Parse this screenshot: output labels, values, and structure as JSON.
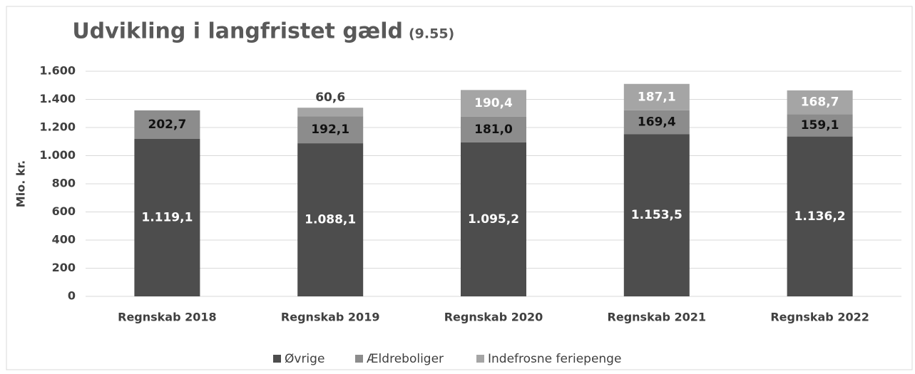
{
  "chart_data": {
    "type": "stacked_bar",
    "title": "Udvikling i langfristet gæld",
    "subtitle": "(9.55)",
    "y_label": "Mio. kr.",
    "categories": [
      "Regnskab 2018",
      "Regnskab 2019",
      "Regnskab 2020",
      "Regnskab 2021",
      "Regnskab 2022"
    ],
    "series": [
      {
        "name": "Øvrige",
        "color": "#4d4d4d",
        "values": [
          1119.1,
          1088.1,
          1095.2,
          1153.5,
          1136.2
        ],
        "value_labels": [
          "1.119,1",
          "1.088,1",
          "1.095,2",
          "1.153,5",
          "1.136,2"
        ]
      },
      {
        "name": "Ældreboliger",
        "color": "#8c8c8c",
        "values": [
          202.7,
          192.1,
          181.0,
          169.4,
          159.1
        ],
        "value_labels": [
          "202,7",
          "192,1",
          "181,0",
          "169,4",
          "159,1"
        ]
      },
      {
        "name": "Indefrosne feriepenge",
        "color": "#a5a5a5",
        "values": [
          null,
          60.6,
          190.4,
          187.1,
          168.7
        ],
        "value_labels": [
          null,
          "60,6",
          "190,4",
          "187,1",
          "168,7"
        ]
      }
    ],
    "ylim": [
      0,
      1600
    ],
    "yticks": [
      0,
      200,
      400,
      600,
      800,
      {
        "value": 1000,
        "label": "1.000"
      },
      {
        "value": 1200,
        "label": "1.200"
      },
      {
        "value": 1400,
        "label": "1.400"
      },
      {
        "value": 1600,
        "label": "1.600"
      }
    ],
    "grid": true,
    "legend": "bottom"
  }
}
